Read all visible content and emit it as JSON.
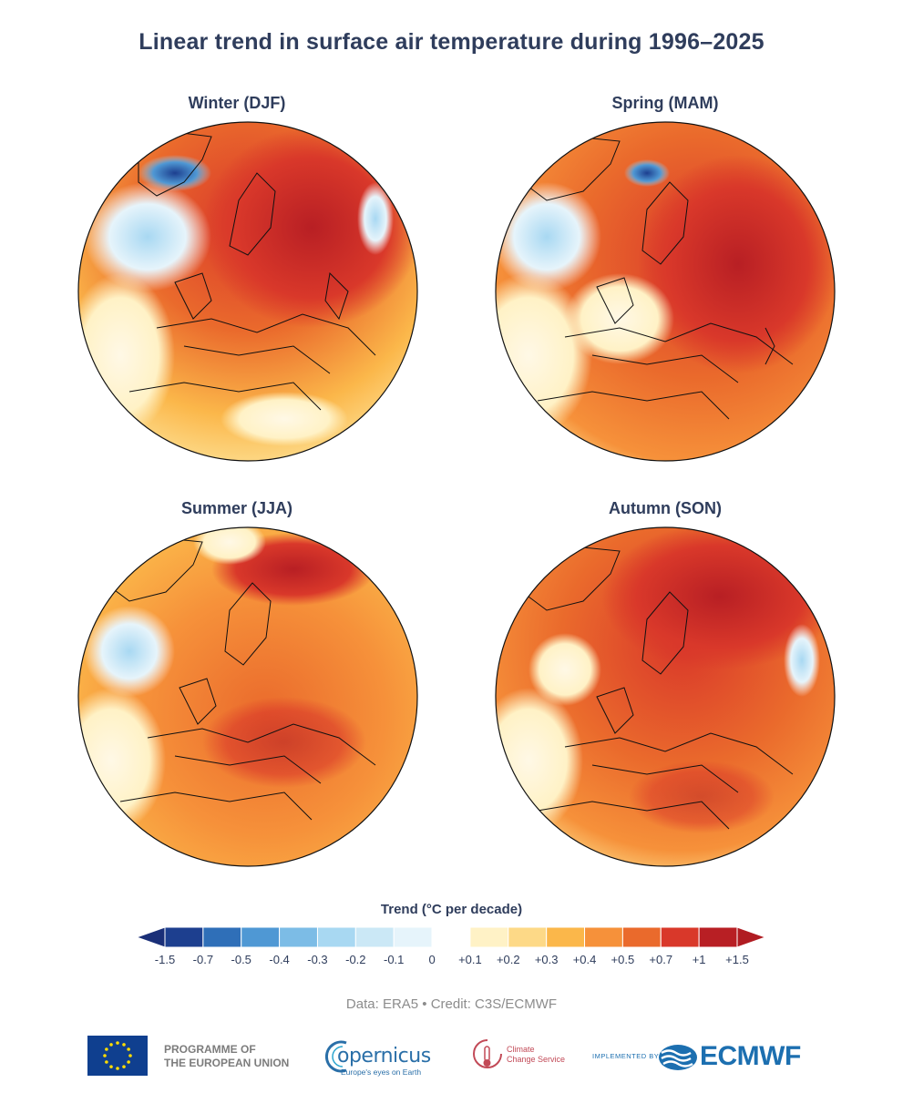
{
  "title": "Linear trend in surface air temperature during 1996–2025",
  "panels": [
    {
      "label": "Winter (DJF)",
      "season": "DJF"
    },
    {
      "label": "Spring (MAM)",
      "season": "MAM"
    },
    {
      "label": "Summer (JJA)",
      "season": "JJA"
    },
    {
      "label": "Autumn (SON)",
      "season": "SON"
    }
  ],
  "legend": {
    "title": "Trend (°C per decade)",
    "ticks": [
      "-1.5",
      "-0.7",
      "-0.5",
      "-0.4",
      "-0.3",
      "-0.2",
      "-0.1",
      "0",
      "+0.1",
      "+0.2",
      "+0.3",
      "+0.4",
      "+0.5",
      "+0.7",
      "+1",
      "+1.5"
    ],
    "colors": [
      "#1d3f8f",
      "#2f6fb8",
      "#4f98d4",
      "#7cbce6",
      "#a8d8f2",
      "#cbe8f6",
      "#e6f4fb",
      "#ffffff",
      "#fff2c6",
      "#fdd987",
      "#fbb74a",
      "#f6913a",
      "#ea6a2c",
      "#d9382a",
      "#b81f24"
    ],
    "low_color": "#1a2f78",
    "high_color": "#b01c22"
  },
  "credit": "Data: ERA5 • Credit: C3S/ECMWF",
  "logos": {
    "eu_line1": "PROGRAMME OF",
    "eu_line2": "THE EUROPEAN UNION",
    "copernicus_word": "opernicus",
    "copernicus_tag": "Europe's eyes on Earth",
    "c3s_line1": "Climate",
    "c3s_line2": "Change Service",
    "implemented_by": "IMPLEMENTED BY",
    "ecmwf": "ECMWF"
  }
}
